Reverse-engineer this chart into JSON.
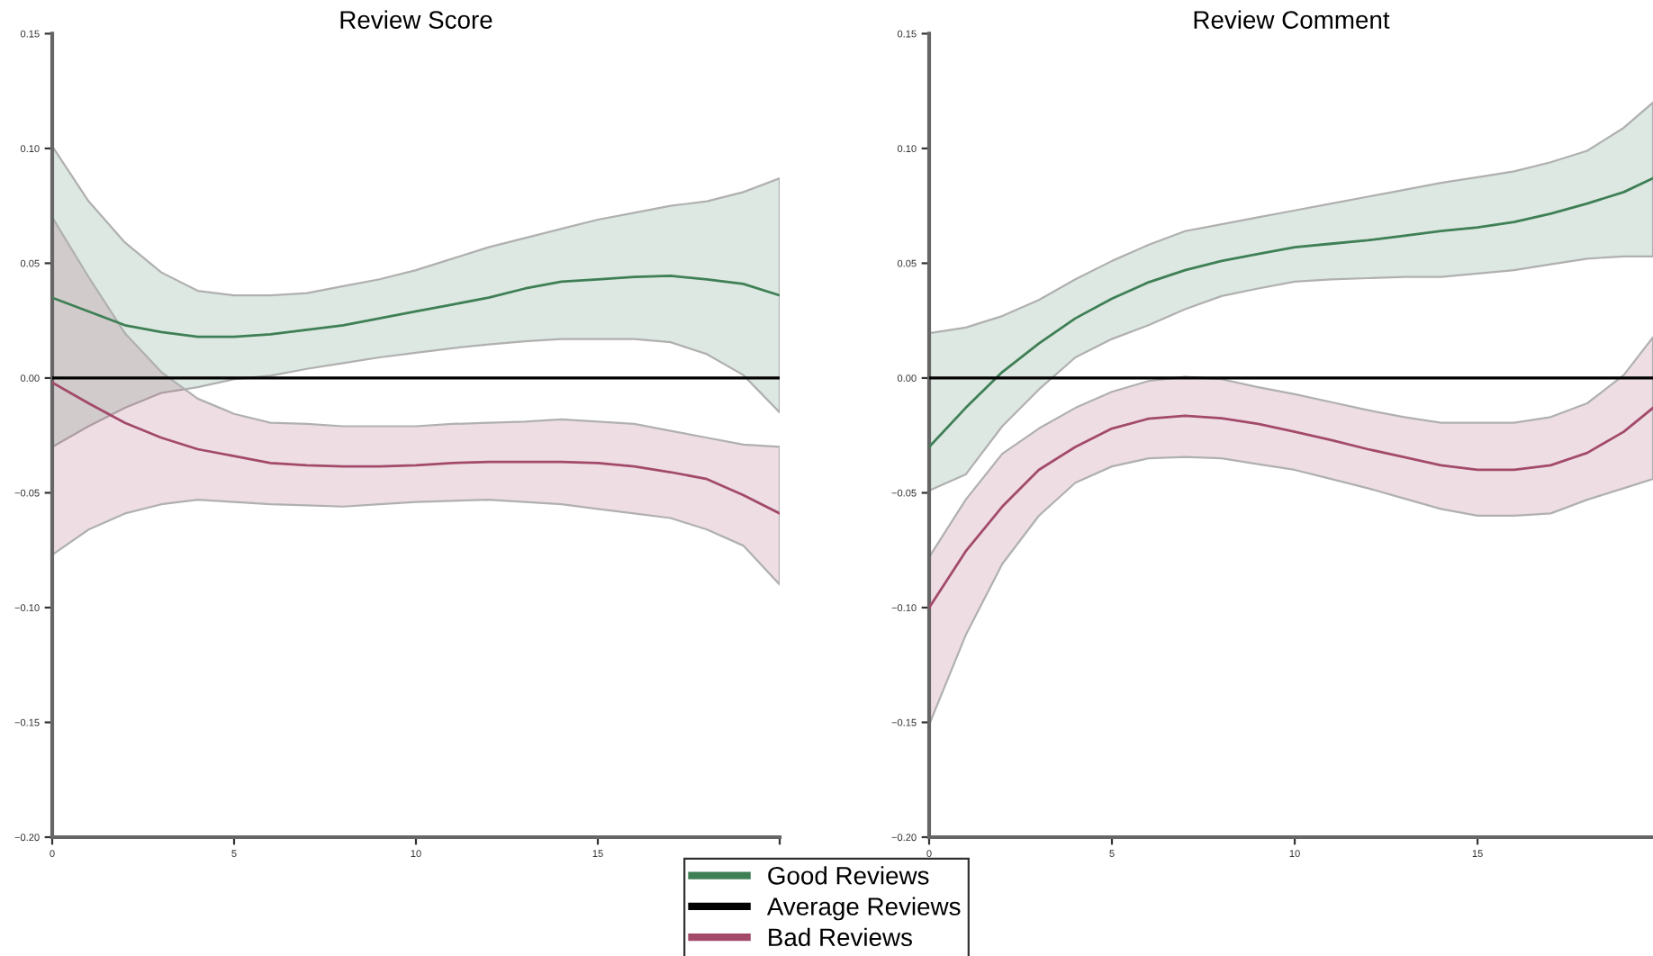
{
  "chart_data": [
    {
      "type": "line",
      "title": "Review Score",
      "xlim": [
        0,
        20
      ],
      "ylim": [
        -0.2,
        0.15
      ],
      "xticks": [
        0,
        5,
        10,
        15,
        {
          "value": 20,
          "label": null
        }
      ],
      "yticks": [
        {
          "value": -0.2,
          "label": "−0.20"
        },
        {
          "value": -0.15,
          "label": "−0.15"
        },
        {
          "value": -0.1,
          "label": "−0.10"
        },
        {
          "value": -0.05,
          "label": "−0.05"
        },
        {
          "value": 0,
          "label": "0.00"
        },
        {
          "value": 0.05,
          "label": "0.05"
        },
        {
          "value": 0.1,
          "label": "0.10"
        },
        {
          "value": 0.15,
          "label": "0.15"
        }
      ],
      "grid": false,
      "legend": "bottom",
      "ref_lines": [
        {
          "axis": "y",
          "value": 0,
          "label": "Average Reviews",
          "color": "#000000"
        }
      ],
      "series": [
        {
          "name": "Good Reviews",
          "color": "#3f7f56",
          "x": [
            0,
            1,
            2,
            3,
            4,
            5,
            6,
            7,
            8,
            9,
            10,
            11,
            12,
            13,
            14,
            15,
            16,
            17,
            18,
            19,
            20
          ],
          "values": [
            0.035,
            0.029,
            0.023,
            0.02,
            0.018,
            0.018,
            0.019,
            0.021,
            0.023,
            0.026,
            0.029,
            0.032,
            0.035,
            0.039,
            0.042,
            0.043,
            0.044,
            0.0445,
            0.043,
            0.041,
            0.036
          ],
          "upper": [
            0.101,
            0.077,
            0.059,
            0.046,
            0.038,
            0.036,
            0.036,
            0.037,
            0.04,
            0.043,
            0.047,
            0.052,
            0.057,
            0.061,
            0.065,
            0.069,
            0.072,
            0.075,
            0.077,
            0.081,
            0.087
          ],
          "lower": [
            -0.03,
            -0.021,
            -0.013,
            -0.0065,
            -0.004,
            -0.0005,
            0.001,
            0.004,
            0.0065,
            0.009,
            0.011,
            0.013,
            0.0146,
            0.016,
            0.017,
            0.017,
            0.017,
            0.0156,
            0.0104,
            0.0013,
            -0.015
          ]
        },
        {
          "name": "Bad Reviews",
          "color": "#a34a6b",
          "x": [
            0,
            1,
            2,
            3,
            4,
            5,
            6,
            7,
            8,
            9,
            10,
            11,
            12,
            13,
            14,
            15,
            16,
            17,
            18,
            19,
            20
          ],
          "values": [
            -0.002,
            -0.011,
            -0.0195,
            -0.026,
            -0.031,
            -0.034,
            -0.037,
            -0.038,
            -0.0385,
            -0.0385,
            -0.038,
            -0.037,
            -0.0365,
            -0.0365,
            -0.0365,
            -0.037,
            -0.0385,
            -0.041,
            -0.044,
            -0.051,
            -0.059
          ],
          "upper": [
            0.07,
            0.044,
            0.0195,
            0.0026,
            -0.009,
            -0.0156,
            -0.0195,
            -0.02,
            -0.021,
            -0.021,
            -0.021,
            -0.02,
            -0.0195,
            -0.019,
            -0.018,
            -0.019,
            -0.02,
            -0.023,
            -0.026,
            -0.029,
            -0.03
          ],
          "lower": [
            -0.077,
            -0.066,
            -0.059,
            -0.055,
            -0.053,
            -0.054,
            -0.055,
            -0.0555,
            -0.056,
            -0.055,
            -0.054,
            -0.0535,
            -0.053,
            -0.054,
            -0.055,
            -0.057,
            -0.059,
            -0.061,
            -0.066,
            -0.073,
            -0.09
          ]
        }
      ]
    },
    {
      "type": "line",
      "title": "Review Comment",
      "xlim": [
        0,
        19.8
      ],
      "ylim": [
        -0.2,
        0.15
      ],
      "xticks": [
        0,
        5,
        10,
        15
      ],
      "yticks": [
        {
          "value": -0.2,
          "label": "−0.20"
        },
        {
          "value": -0.15,
          "label": "−0.15"
        },
        {
          "value": -0.1,
          "label": "−0.10"
        },
        {
          "value": -0.05,
          "label": "−0.05"
        },
        {
          "value": 0,
          "label": "0.00"
        },
        {
          "value": 0.05,
          "label": "0.05"
        },
        {
          "value": 0.1,
          "label": "0.10"
        },
        {
          "value": 0.15,
          "label": "0.15"
        }
      ],
      "grid": false,
      "ref_lines": [
        {
          "axis": "y",
          "value": 0,
          "color": "#000000"
        }
      ],
      "series": [
        {
          "color": "#3f7f56",
          "x": [
            0,
            1,
            2,
            3,
            4,
            5,
            6,
            7,
            8,
            9,
            10,
            11,
            12,
            13,
            14,
            15,
            16,
            17,
            18,
            19,
            19.8
          ],
          "values": [
            -0.03,
            -0.013,
            0.0026,
            0.015,
            0.026,
            0.0346,
            0.0417,
            0.047,
            0.051,
            0.054,
            0.057,
            0.0585,
            0.06,
            0.062,
            0.064,
            0.0656,
            0.068,
            0.0716,
            0.076,
            0.081,
            0.087
          ],
          "upper": [
            0.0195,
            0.022,
            0.027,
            0.034,
            0.043,
            0.051,
            0.058,
            0.064,
            0.067,
            0.07,
            0.073,
            0.076,
            0.079,
            0.082,
            0.085,
            0.0875,
            0.09,
            0.094,
            0.099,
            0.109,
            0.12
          ],
          "lower": [
            -0.049,
            -0.042,
            -0.021,
            -0.005,
            0.009,
            0.017,
            0.023,
            0.03,
            0.0357,
            0.039,
            0.042,
            0.043,
            0.0435,
            0.044,
            0.044,
            0.0455,
            0.047,
            0.0495,
            0.052,
            0.053,
            0.053
          ]
        },
        {
          "color": "#a34a6b",
          "x": [
            0,
            1,
            2,
            3,
            4,
            5,
            6,
            7,
            8,
            9,
            10,
            11,
            12,
            13,
            14,
            15,
            16,
            17,
            18,
            19,
            19.8
          ],
          "values": [
            -0.1,
            -0.0755,
            -0.056,
            -0.04,
            -0.03,
            -0.022,
            -0.0177,
            -0.0164,
            -0.0175,
            -0.02,
            -0.0234,
            -0.027,
            -0.031,
            -0.0345,
            -0.038,
            -0.04,
            -0.04,
            -0.038,
            -0.0326,
            -0.0234,
            -0.013
          ],
          "upper": [
            -0.078,
            -0.053,
            -0.033,
            -0.022,
            -0.013,
            -0.006,
            -0.0013,
            0.0005,
            -0.0005,
            -0.004,
            -0.007,
            -0.0105,
            -0.014,
            -0.017,
            -0.0195,
            -0.0195,
            -0.0195,
            -0.017,
            -0.011,
            0.0013,
            0.0177
          ],
          "lower": [
            -0.151,
            -0.112,
            -0.081,
            -0.06,
            -0.0456,
            -0.0385,
            -0.035,
            -0.0344,
            -0.035,
            -0.0375,
            -0.04,
            -0.044,
            -0.048,
            -0.0525,
            -0.057,
            -0.06,
            -0.06,
            -0.059,
            -0.053,
            -0.048,
            -0.044
          ]
        }
      ]
    }
  ]
}
